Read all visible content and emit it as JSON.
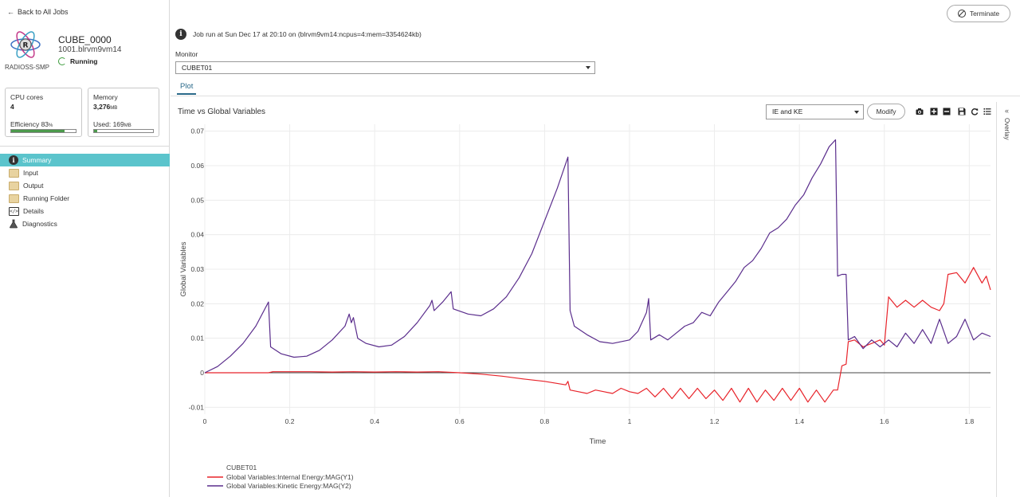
{
  "sidebar": {
    "back_label": "Back to All Jobs",
    "app_name": "RADIOSS-SMP",
    "job_title": "CUBE_0000",
    "job_host": "1001.blrvm9vm14",
    "status": "Running",
    "cpu": {
      "label": "CPU cores",
      "value": "4",
      "efficiency_label": "Efficiency 83",
      "efficiency_unit": "%",
      "efficiency_fraction": 0.83
    },
    "memory": {
      "label": "Memory",
      "value": "3,276",
      "value_unit": "MB",
      "used_label": "Used: 169",
      "used_unit": "MB",
      "used_fraction": 0.05
    },
    "nav": [
      {
        "label": "Summary",
        "icon": "info-icon",
        "active": true
      },
      {
        "label": "Input",
        "icon": "folder-icon",
        "active": false
      },
      {
        "label": "Output",
        "icon": "folder-icon",
        "active": false
      },
      {
        "label": "Running Folder",
        "icon": "folder-icon",
        "active": false
      },
      {
        "label": "Details",
        "icon": "code-icon",
        "active": false
      },
      {
        "label": "Diagnostics",
        "icon": "flask-icon",
        "active": false
      }
    ]
  },
  "header": {
    "terminate_label": "Terminate",
    "job_info": "Job run at Sun Dec 17 at 20:10 on (blrvm9vm14:ncpus=4:mem=3354624kb)",
    "monitor_label": "Monitor",
    "monitor_value": "CUBET01",
    "tab_plot": "Plot"
  },
  "plot": {
    "series_select": "IE and KE",
    "modify_label": "Modify",
    "overlay_label": "Overlay",
    "toolbar_icons": [
      "camera-icon",
      "zoom-in-icon",
      "zoom-out-icon",
      "save-icon",
      "reset-icon",
      "list-icon"
    ]
  },
  "chart_data": {
    "type": "line",
    "title": "Time vs Global Variables",
    "xlabel": "Time",
    "ylabel": "Global Variables",
    "xlim": [
      0,
      1.85
    ],
    "ylim": [
      -0.012,
      0.072
    ],
    "xticks": [
      0,
      0.2,
      0.4,
      0.6,
      0.8,
      1,
      1.2,
      1.4,
      1.6,
      1.8
    ],
    "xtick_labels": [
      "0",
      "0.2",
      "0.4",
      "0.6",
      "0.8",
      "1",
      "1.2",
      "1.4",
      "1.6",
      "1.8"
    ],
    "yticks": [
      -0.01,
      0,
      0.01,
      0.02,
      0.03,
      0.04,
      0.05,
      0.06,
      0.07
    ],
    "ytick_labels": [
      "-0.01",
      "0",
      "0.01",
      "0.02",
      "0.03",
      "0.04",
      "0.05",
      "0.06",
      "0.07"
    ],
    "grid": true,
    "legend_title": "CUBET01",
    "legend_position": "bottom-left",
    "series": [
      {
        "name": "Global Variables:Internal Energy:MAG(Y1)",
        "color": "#e8232a",
        "points": [
          [
            0,
            0
          ],
          [
            0.15,
            0
          ],
          [
            0.16,
            0.0003
          ],
          [
            0.2,
            0.0003
          ],
          [
            0.25,
            0.0003
          ],
          [
            0.3,
            0.0002
          ],
          [
            0.35,
            0.0003
          ],
          [
            0.4,
            0.0002
          ],
          [
            0.45,
            0.0003
          ],
          [
            0.5,
            0.0002
          ],
          [
            0.55,
            0.0003
          ],
          [
            0.6,
            0
          ],
          [
            0.65,
            -0.0004
          ],
          [
            0.7,
            -0.001
          ],
          [
            0.75,
            -0.0018
          ],
          [
            0.8,
            -0.0025
          ],
          [
            0.85,
            -0.0035
          ],
          [
            0.855,
            -0.0025
          ],
          [
            0.86,
            -0.005
          ],
          [
            0.88,
            -0.0055
          ],
          [
            0.9,
            -0.006
          ],
          [
            0.92,
            -0.005
          ],
          [
            0.94,
            -0.0055
          ],
          [
            0.96,
            -0.006
          ],
          [
            0.98,
            -0.0045
          ],
          [
            1.0,
            -0.0055
          ],
          [
            1.02,
            -0.006
          ],
          [
            1.04,
            -0.0045
          ],
          [
            1.06,
            -0.007
          ],
          [
            1.08,
            -0.0045
          ],
          [
            1.1,
            -0.0075
          ],
          [
            1.12,
            -0.0045
          ],
          [
            1.14,
            -0.0075
          ],
          [
            1.16,
            -0.0045
          ],
          [
            1.18,
            -0.0075
          ],
          [
            1.2,
            -0.005
          ],
          [
            1.22,
            -0.008
          ],
          [
            1.24,
            -0.0045
          ],
          [
            1.26,
            -0.0085
          ],
          [
            1.28,
            -0.0045
          ],
          [
            1.3,
            -0.0085
          ],
          [
            1.32,
            -0.005
          ],
          [
            1.34,
            -0.008
          ],
          [
            1.36,
            -0.0045
          ],
          [
            1.38,
            -0.008
          ],
          [
            1.4,
            -0.0045
          ],
          [
            1.42,
            -0.0085
          ],
          [
            1.44,
            -0.005
          ],
          [
            1.46,
            -0.0085
          ],
          [
            1.48,
            -0.005
          ],
          [
            1.49,
            -0.005
          ],
          [
            1.5,
            0.002
          ],
          [
            1.51,
            0.0025
          ],
          [
            1.515,
            0.009
          ],
          [
            1.53,
            0.0095
          ],
          [
            1.55,
            0.0075
          ],
          [
            1.57,
            0.0085
          ],
          [
            1.59,
            0.0095
          ],
          [
            1.6,
            0.008
          ],
          [
            1.61,
            0.022
          ],
          [
            1.63,
            0.019
          ],
          [
            1.65,
            0.021
          ],
          [
            1.67,
            0.019
          ],
          [
            1.69,
            0.021
          ],
          [
            1.71,
            0.019
          ],
          [
            1.73,
            0.018
          ],
          [
            1.74,
            0.02
          ],
          [
            1.75,
            0.0285
          ],
          [
            1.77,
            0.029
          ],
          [
            1.79,
            0.026
          ],
          [
            1.81,
            0.0305
          ],
          [
            1.83,
            0.026
          ],
          [
            1.84,
            0.028
          ],
          [
            1.85,
            0.024
          ]
        ]
      },
      {
        "name": "Global Variables:Kinetic Energy:MAG(Y2)",
        "color": "#5a2d8c",
        "points": [
          [
            0,
            0
          ],
          [
            0.03,
            0.0018
          ],
          [
            0.06,
            0.0048
          ],
          [
            0.09,
            0.0085
          ],
          [
            0.12,
            0.0135
          ],
          [
            0.15,
            0.0205
          ],
          [
            0.155,
            0.0075
          ],
          [
            0.18,
            0.0055
          ],
          [
            0.21,
            0.0045
          ],
          [
            0.24,
            0.0048
          ],
          [
            0.27,
            0.0065
          ],
          [
            0.3,
            0.0095
          ],
          [
            0.33,
            0.0135
          ],
          [
            0.34,
            0.017
          ],
          [
            0.345,
            0.0145
          ],
          [
            0.35,
            0.016
          ],
          [
            0.36,
            0.01
          ],
          [
            0.38,
            0.0085
          ],
          [
            0.41,
            0.0075
          ],
          [
            0.44,
            0.008
          ],
          [
            0.47,
            0.0105
          ],
          [
            0.5,
            0.0145
          ],
          [
            0.53,
            0.0195
          ],
          [
            0.535,
            0.021
          ],
          [
            0.54,
            0.018
          ],
          [
            0.56,
            0.0205
          ],
          [
            0.58,
            0.0235
          ],
          [
            0.585,
            0.0185
          ],
          [
            0.62,
            0.017
          ],
          [
            0.65,
            0.0165
          ],
          [
            0.68,
            0.0185
          ],
          [
            0.71,
            0.022
          ],
          [
            0.74,
            0.0275
          ],
          [
            0.77,
            0.0345
          ],
          [
            0.8,
            0.044
          ],
          [
            0.83,
            0.0535
          ],
          [
            0.855,
            0.0625
          ],
          [
            0.86,
            0.018
          ],
          [
            0.87,
            0.0135
          ],
          [
            0.9,
            0.011
          ],
          [
            0.93,
            0.009
          ],
          [
            0.96,
            0.0085
          ],
          [
            1.0,
            0.0095
          ],
          [
            1.02,
            0.012
          ],
          [
            1.04,
            0.0175
          ],
          [
            1.045,
            0.0215
          ],
          [
            1.05,
            0.0095
          ],
          [
            1.07,
            0.011
          ],
          [
            1.09,
            0.0095
          ],
          [
            1.11,
            0.0115
          ],
          [
            1.13,
            0.0135
          ],
          [
            1.15,
            0.0145
          ],
          [
            1.17,
            0.0175
          ],
          [
            1.19,
            0.0165
          ],
          [
            1.21,
            0.0205
          ],
          [
            1.23,
            0.0235
          ],
          [
            1.25,
            0.0265
          ],
          [
            1.27,
            0.0305
          ],
          [
            1.29,
            0.0325
          ],
          [
            1.31,
            0.036
          ],
          [
            1.33,
            0.0405
          ],
          [
            1.35,
            0.042
          ],
          [
            1.37,
            0.0445
          ],
          [
            1.39,
            0.0485
          ],
          [
            1.41,
            0.0515
          ],
          [
            1.43,
            0.0565
          ],
          [
            1.45,
            0.0605
          ],
          [
            1.47,
            0.0655
          ],
          [
            1.485,
            0.0675
          ],
          [
            1.49,
            0.028
          ],
          [
            1.5,
            0.0285
          ],
          [
            1.51,
            0.0285
          ],
          [
            1.515,
            0.0095
          ],
          [
            1.53,
            0.0105
          ],
          [
            1.55,
            0.007
          ],
          [
            1.57,
            0.0095
          ],
          [
            1.59,
            0.0075
          ],
          [
            1.61,
            0.0095
          ],
          [
            1.63,
            0.0075
          ],
          [
            1.65,
            0.0115
          ],
          [
            1.67,
            0.0085
          ],
          [
            1.69,
            0.0125
          ],
          [
            1.71,
            0.0085
          ],
          [
            1.73,
            0.0155
          ],
          [
            1.75,
            0.0085
          ],
          [
            1.77,
            0.0105
          ],
          [
            1.79,
            0.0155
          ],
          [
            1.81,
            0.0095
          ],
          [
            1.83,
            0.0115
          ],
          [
            1.85,
            0.0105
          ]
        ]
      }
    ]
  }
}
